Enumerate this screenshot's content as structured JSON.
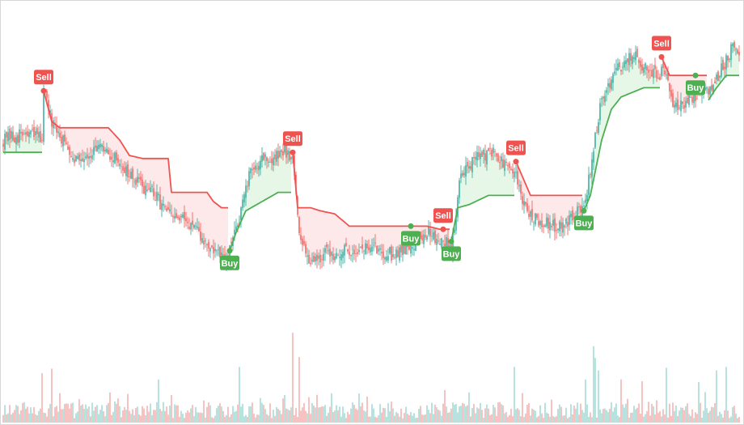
{
  "chart_data": {
    "type": "candlestick",
    "title": "",
    "xlabel": "",
    "ylabel": "",
    "grid": false,
    "legend": "none",
    "ylim": [
      0,
      100
    ],
    "volume_ylim": [
      0,
      100
    ],
    "colors": {
      "up": "#26a69a",
      "down": "#ef5350",
      "vol_up": "#9ad6cf",
      "vol_down": "#f2a9a8",
      "trail_up": "#4caf50",
      "trail_down": "#ef5350",
      "fill_up": "#e3f6e3",
      "fill_down": "#fde5e5",
      "buy": "#4caf50",
      "sell": "#ef5350"
    },
    "segments": [
      {
        "direction": "up",
        "start_index": 0,
        "price_path": [
          [
            0,
            60
          ],
          [
            7,
            61
          ],
          [
            14,
            62
          ],
          [
            24,
            61
          ]
        ],
        "stop_path": [
          [
            0,
            56
          ],
          [
            24,
            56
          ]
        ]
      },
      {
        "direction": "down",
        "start_index": 25,
        "price_path": [
          [
            25,
            77
          ],
          [
            30,
            65
          ],
          [
            45,
            54
          ],
          [
            60,
            57
          ],
          [
            72,
            53
          ],
          [
            80,
            47
          ],
          [
            92,
            43
          ],
          [
            104,
            35
          ],
          [
            116,
            33
          ],
          [
            122,
            28
          ],
          [
            128,
            25
          ],
          [
            139,
            20
          ]
        ],
        "stop_path": [
          [
            25,
            76
          ],
          [
            30,
            66
          ],
          [
            35,
            64
          ],
          [
            65,
            64
          ],
          [
            72,
            60
          ],
          [
            78,
            55
          ],
          [
            86,
            54
          ],
          [
            102,
            54
          ],
          [
            104,
            43
          ],
          [
            126,
            43
          ],
          [
            130,
            40
          ],
          [
            135,
            38
          ],
          [
            139,
            38
          ]
        ]
      },
      {
        "direction": "up",
        "start_index": 140,
        "price_path": [
          [
            140,
            24
          ],
          [
            146,
            35
          ],
          [
            152,
            48
          ],
          [
            160,
            55
          ],
          [
            166,
            53
          ],
          [
            174,
            57
          ],
          [
            178,
            54
          ]
        ],
        "stop_path": [
          [
            140,
            24
          ],
          [
            144,
            30
          ],
          [
            150,
            37
          ],
          [
            160,
            40
          ],
          [
            170,
            43
          ],
          [
            178,
            43
          ]
        ]
      },
      {
        "direction": "down",
        "start_index": 179,
        "price_path": [
          [
            179,
            56
          ],
          [
            183,
            28
          ],
          [
            190,
            21
          ],
          [
            200,
            23
          ],
          [
            215,
            24
          ],
          [
            228,
            25
          ],
          [
            240,
            23
          ],
          [
            252,
            26
          ],
          [
            262,
            30
          ],
          [
            272,
            27
          ],
          [
            276,
            26
          ]
        ],
        "stop_path": [
          [
            179,
            56
          ],
          [
            182,
            38
          ],
          [
            190,
            38
          ],
          [
            196,
            37
          ],
          [
            205,
            36
          ],
          [
            214,
            32
          ],
          [
            256,
            32
          ],
          [
            262,
            32
          ],
          [
            270,
            31
          ],
          [
            276,
            31
          ]
        ]
      },
      {
        "direction": "up",
        "start_index": 277,
        "price_path": [
          [
            277,
            24
          ],
          [
            283,
            50
          ],
          [
            292,
            54
          ],
          [
            302,
            56
          ],
          [
            312,
            51
          ],
          [
            316,
            48
          ]
        ],
        "stop_path": [
          [
            277,
            27
          ],
          [
            281,
            38
          ],
          [
            288,
            39
          ],
          [
            300,
            42
          ],
          [
            316,
            42
          ]
        ]
      },
      {
        "direction": "down",
        "start_index": 317,
        "price_path": [
          [
            317,
            49
          ],
          [
            322,
            38
          ],
          [
            330,
            34
          ],
          [
            342,
            32
          ],
          [
            352,
            35
          ],
          [
            358,
            38
          ]
        ],
        "stop_path": [
          [
            317,
            53
          ],
          [
            326,
            42
          ],
          [
            358,
            42
          ]
        ]
      },
      {
        "direction": "up",
        "start_index": 359,
        "price_path": [
          [
            359,
            38
          ],
          [
            363,
            50
          ],
          [
            370,
            74
          ],
          [
            380,
            83
          ],
          [
            390,
            88
          ],
          [
            398,
            82
          ],
          [
            406,
            80
          ]
        ],
        "stop_path": [
          [
            359,
            37
          ],
          [
            363,
            42
          ],
          [
            370,
            60
          ],
          [
            376,
            70
          ],
          [
            382,
            74
          ],
          [
            396,
            77
          ],
          [
            406,
            77
          ]
        ]
      },
      {
        "direction": "down",
        "start_index": 407,
        "price_path": [
          [
            407,
            86
          ],
          [
            415,
            70
          ],
          [
            425,
            74
          ],
          [
            435,
            76
          ]
        ],
        "stop_path": [
          [
            407,
            87
          ],
          [
            412,
            81
          ],
          [
            435,
            81
          ]
        ]
      },
      {
        "direction": "up",
        "start_index": 436,
        "price_path": [
          [
            436,
            76
          ],
          [
            445,
            84
          ],
          [
            452,
            92
          ],
          [
            455,
            88
          ]
        ],
        "stop_path": [
          [
            436,
            73
          ],
          [
            441,
            77
          ],
          [
            447,
            81
          ],
          [
            455,
            81
          ]
        ]
      }
    ],
    "signals": [
      {
        "type": "sell",
        "index": 25,
        "label": "Sell"
      },
      {
        "type": "buy",
        "index": 140,
        "label": "Buy"
      },
      {
        "type": "sell",
        "index": 179,
        "label": "Sell"
      },
      {
        "type": "buy",
        "index": 252,
        "label": "Buy"
      },
      {
        "type": "sell",
        "index": 272,
        "label": "Sell"
      },
      {
        "type": "buy",
        "index": 277,
        "label": "Buy"
      },
      {
        "type": "sell",
        "index": 317,
        "label": "Sell"
      },
      {
        "type": "buy",
        "index": 359,
        "label": "Buy"
      },
      {
        "type": "sell",
        "index": 407,
        "label": "Sell"
      },
      {
        "type": "buy",
        "index": 428,
        "label": "Buy"
      }
    ],
    "volume": {
      "base": 12,
      "spikes": [
        [
          24,
          55
        ],
        [
          30,
          60
        ],
        [
          96,
          48
        ],
        [
          146,
          62
        ],
        [
          179,
          100
        ],
        [
          183,
          73
        ],
        [
          273,
          36
        ],
        [
          316,
          62
        ],
        [
          360,
          48
        ],
        [
          365,
          85
        ],
        [
          366,
          72
        ],
        [
          368,
          58
        ],
        [
          382,
          48
        ],
        [
          395,
          46
        ],
        [
          410,
          61
        ],
        [
          430,
          45
        ],
        [
          441,
          58
        ],
        [
          447,
          62
        ]
      ]
    }
  }
}
